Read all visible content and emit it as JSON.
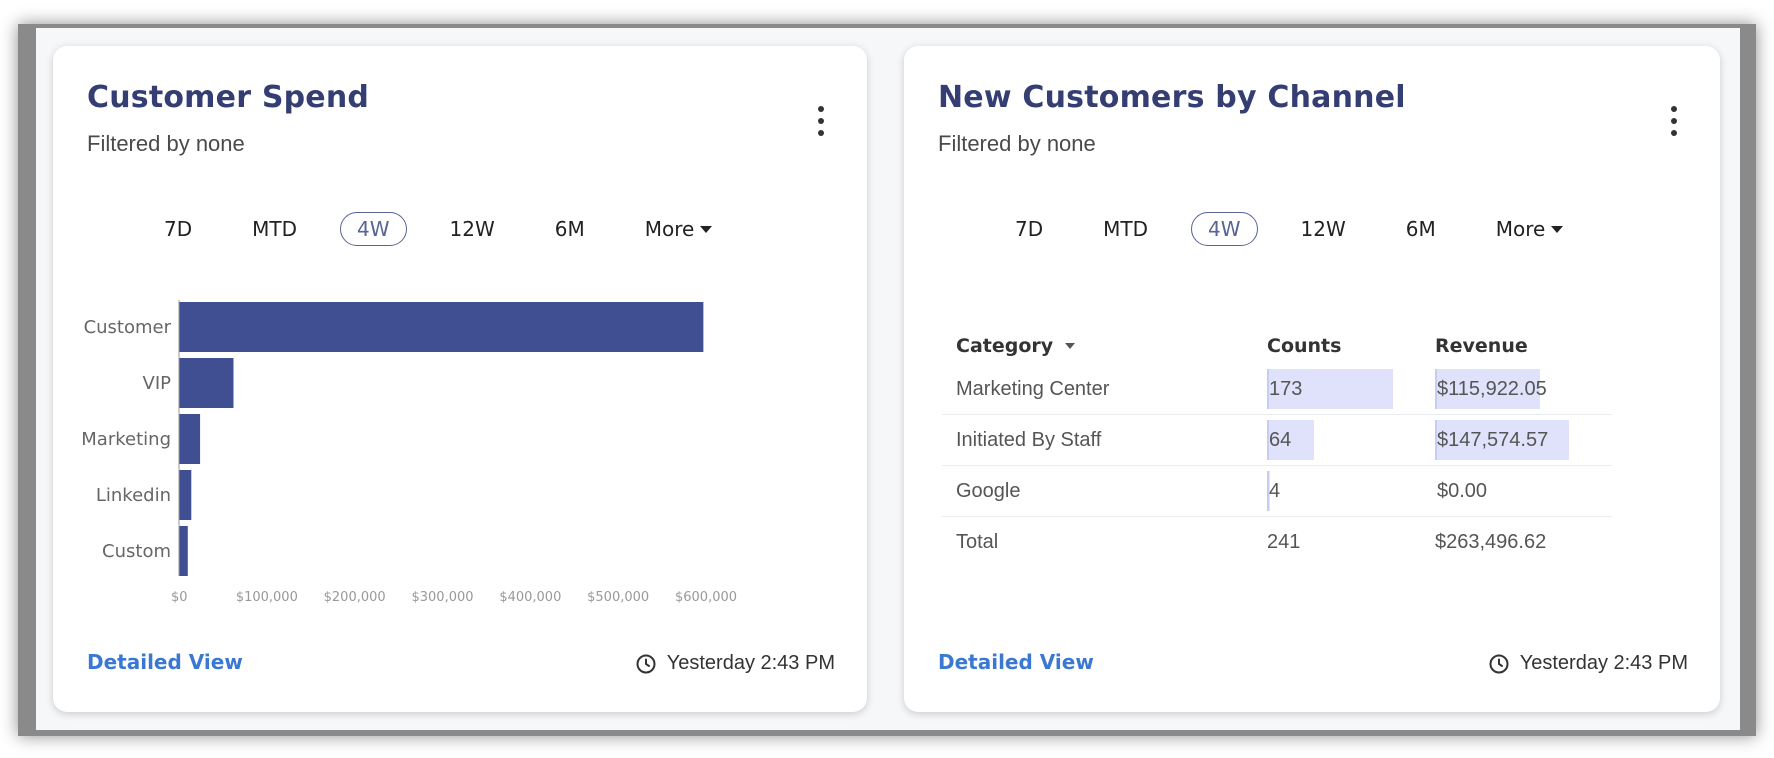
{
  "colors": {
    "bar": "#404f91",
    "title": "#343e73",
    "link": "#3a78d2",
    "databar": "#dfe2fa"
  },
  "spend_card": {
    "title": "Customer Spend",
    "subtitle": "Filtered by none",
    "tabs": [
      "7D",
      "MTD",
      "4W",
      "12W",
      "6M",
      "More"
    ],
    "active_tab": "4W",
    "detailed_view": "Detailed View",
    "timestamp": "Yesterday 2:43 PM"
  },
  "channel_card": {
    "title": "New Customers by Channel",
    "subtitle": "Filtered by none",
    "tabs": [
      "7D",
      "MTD",
      "4W",
      "12W",
      "6M",
      "More"
    ],
    "active_tab": "4W",
    "table": {
      "headers": {
        "category": "Category",
        "counts": "Counts",
        "revenue": "Revenue"
      },
      "rows": [
        {
          "category": "Marketing Center",
          "counts": "173",
          "revenue": "$115,922.05",
          "count_value": 173,
          "revenue_value": 115922.05
        },
        {
          "category": "Initiated By Staff",
          "counts": "64",
          "revenue": "$147,574.57",
          "count_value": 64,
          "revenue_value": 147574.57
        },
        {
          "category": "Google",
          "counts": "4",
          "revenue": "$0.00",
          "count_value": 4,
          "revenue_value": 0
        }
      ],
      "total": {
        "category": "Total",
        "counts": "241",
        "revenue": "$263,496.62"
      }
    },
    "detailed_view": "Detailed View",
    "timestamp": "Yesterday 2:43 PM"
  },
  "chart_data": {
    "type": "bar",
    "orientation": "horizontal",
    "categories": [
      "Customer",
      "VIP",
      "Marketing",
      "Linkedin",
      "Custom"
    ],
    "values": [
      597000,
      62000,
      24000,
      14000,
      10000
    ],
    "xlim": [
      0,
      600000
    ],
    "xticks": [
      "$0",
      "$100,000",
      "$200,000",
      "$300,000",
      "$400,000",
      "$500,000",
      "$600,000"
    ],
    "tick_values": [
      0,
      100000,
      200000,
      300000,
      400000,
      500000,
      600000
    ],
    "grid": false
  }
}
